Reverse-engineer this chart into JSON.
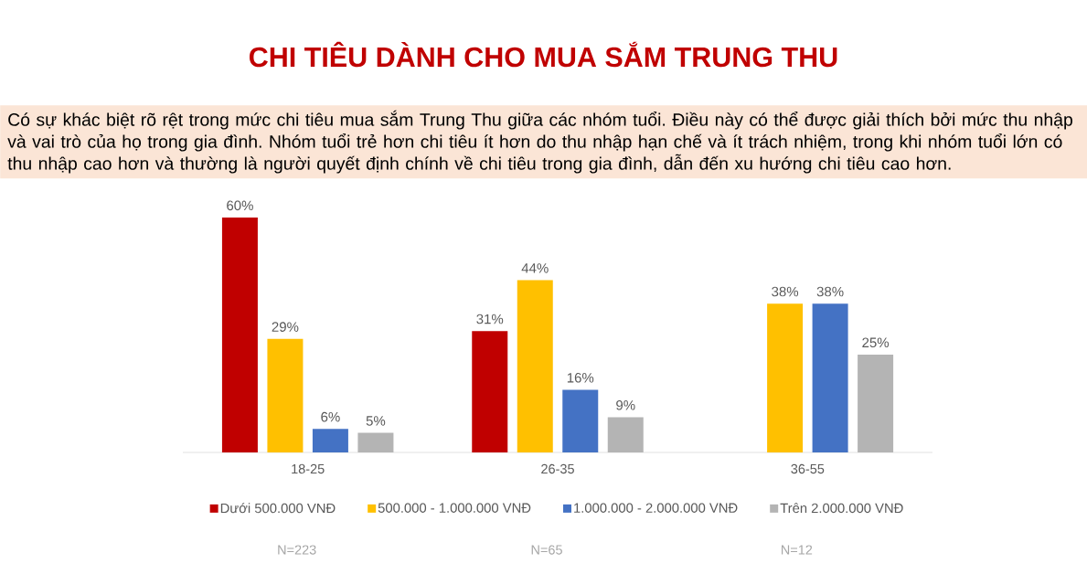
{
  "chart_data": {
    "type": "bar",
    "title": "CHI TIÊU DÀNH CHO MUA SẮM TRUNG THU",
    "subtitle": "Có sự khác biệt rõ rệt trong mức chi tiêu mua sắm Trung Thu giữa các nhóm tuổi. Điều này có thể được giải thích bởi mức thu nhập và vai trò của họ trong gia đình. Nhóm tuổi trẻ hơn chi tiêu ít hơn do thu nhập hạn chế và ít trách nhiệm, trong khi nhóm tuổi lớn có thu nhập cao hơn và thường là người quyết định chính về chi tiêu trong gia đình, dẫn đến xu hướng chi tiêu cao hơn.",
    "categories": [
      "18-25",
      "26-35",
      "36-55"
    ],
    "series": [
      {
        "name": "Dưới 500.000 VNĐ",
        "color": "#c00000",
        "values": [
          60,
          31,
          null
        ],
        "value_labels": [
          "60%",
          "31%",
          null
        ]
      },
      {
        "name": "500.000 - 1.000.000 VNĐ",
        "color": "#ffc000",
        "values": [
          29,
          44,
          38
        ],
        "value_labels": [
          "29%",
          "44%",
          "38%"
        ]
      },
      {
        "name": "1.000.000 - 2.000.000 VNĐ",
        "color": "#4472c4",
        "values": [
          6,
          16,
          38
        ],
        "value_labels": [
          "6%",
          "16%",
          "38%"
        ]
      },
      {
        "name": "Trên 2.000.000 VNĐ",
        "color": "#b4b4b4",
        "values": [
          5,
          9,
          25
        ],
        "value_labels": [
          "5%",
          "9%",
          "25%"
        ]
      }
    ],
    "legend": "bottom",
    "annotations": [
      "N=223",
      "N=65",
      "N=12"
    ]
  }
}
